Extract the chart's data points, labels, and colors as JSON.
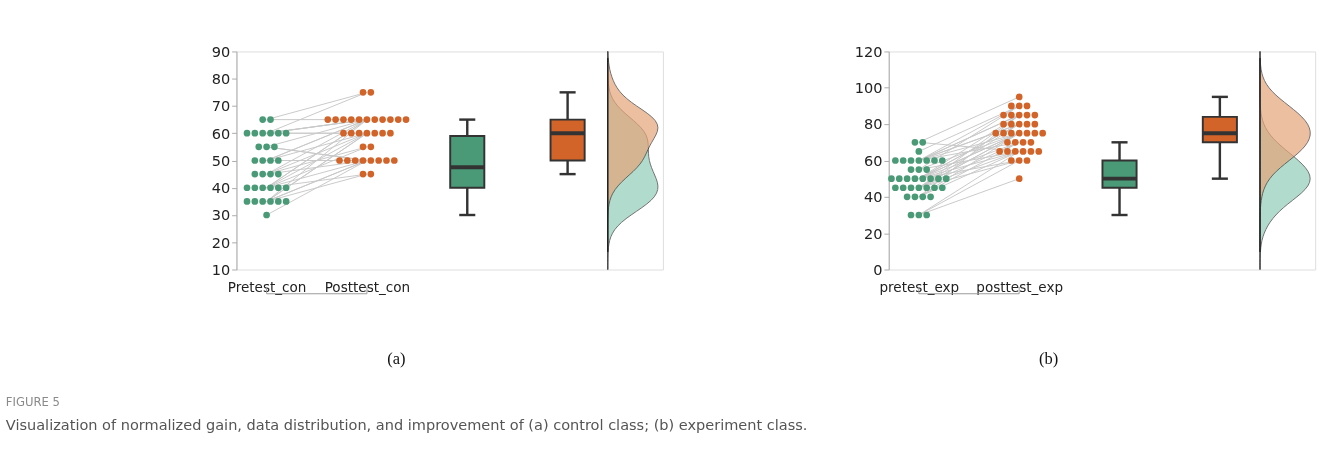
{
  "chart_data": [
    {
      "type": "box",
      "categories": [
        "Pretest_con",
        "Posttest_con",
        null,
        null
      ],
      "ylim": [
        10,
        90
      ],
      "yticks": [
        10,
        20,
        30,
        40,
        50,
        60,
        70,
        80,
        90
      ],
      "grid": false,
      "marker": "circle",
      "annotations": [
        "(a)"
      ],
      "series": [
        {
          "type": "line",
          "color": "#c8c8c8",
          "marker": "none",
          "x": [
            "Pretest_con",
            "Posttest_con"
          ],
          "values": [
            65,
            75
          ]
        },
        {
          "type": "line",
          "color": "#c8c8c8",
          "marker": "none",
          "x": [
            "Pretest_con",
            "Posttest_con"
          ],
          "values": [
            65,
            65
          ]
        },
        {
          "type": "line",
          "color": "#c8c8c8",
          "marker": "none",
          "x": [
            "Pretest_con",
            "Posttest_con"
          ],
          "values": [
            60,
            60
          ]
        },
        {
          "type": "line",
          "color": "#c8c8c8",
          "marker": "none",
          "x": [
            "Pretest_con",
            "Posttest_con"
          ],
          "values": [
            60,
            65
          ]
        },
        {
          "type": "line",
          "color": "#c8c8c8",
          "marker": "none",
          "x": [
            "Pretest_con",
            "Posttest_con"
          ],
          "values": [
            60,
            65
          ]
        },
        {
          "type": "line",
          "color": "#c8c8c8",
          "marker": "none",
          "x": [
            "Pretest_con",
            "Posttest_con"
          ],
          "values": [
            60,
            75
          ]
        },
        {
          "type": "line",
          "color": "#c8c8c8",
          "marker": "none",
          "x": [
            "Pretest_con",
            "Posttest_con"
          ],
          "values": [
            60,
            60
          ]
        },
        {
          "type": "line",
          "color": "#c8c8c8",
          "marker": "none",
          "x": [
            "Pretest_con",
            "Posttest_con"
          ],
          "values": [
            60,
            65
          ]
        },
        {
          "type": "line",
          "color": "#c8c8c8",
          "marker": "none",
          "x": [
            "Pretest_con",
            "Posttest_con"
          ],
          "values": [
            55,
            50
          ]
        },
        {
          "type": "line",
          "color": "#c8c8c8",
          "marker": "none",
          "x": [
            "Pretest_con",
            "Posttest_con"
          ],
          "values": [
            55,
            65
          ]
        },
        {
          "type": "line",
          "color": "#c8c8c8",
          "marker": "none",
          "x": [
            "Pretest_con",
            "Posttest_con"
          ],
          "values": [
            55,
            50
          ]
        },
        {
          "type": "line",
          "color": "#c8c8c8",
          "marker": "none",
          "x": [
            "Pretest_con",
            "Posttest_con"
          ],
          "values": [
            50,
            65
          ]
        },
        {
          "type": "line",
          "color": "#c8c8c8",
          "marker": "none",
          "x": [
            "Pretest_con",
            "Posttest_con"
          ],
          "values": [
            50,
            60
          ]
        },
        {
          "type": "line",
          "color": "#c8c8c8",
          "marker": "none",
          "x": [
            "Pretest_con",
            "Posttest_con"
          ],
          "values": [
            50,
            65
          ]
        },
        {
          "type": "line",
          "color": "#c8c8c8",
          "marker": "none",
          "x": [
            "Pretest_con",
            "Posttest_con"
          ],
          "values": [
            50,
            50
          ]
        },
        {
          "type": "line",
          "color": "#c8c8c8",
          "marker": "none",
          "x": [
            "Pretest_con",
            "Posttest_con"
          ],
          "values": [
            45,
            60
          ]
        },
        {
          "type": "line",
          "color": "#c8c8c8",
          "marker": "none",
          "x": [
            "Pretest_con",
            "Posttest_con"
          ],
          "values": [
            45,
            55
          ]
        },
        {
          "type": "line",
          "color": "#c8c8c8",
          "marker": "none",
          "x": [
            "Pretest_con",
            "Posttest_con"
          ],
          "values": [
            45,
            65
          ]
        },
        {
          "type": "line",
          "color": "#c8c8c8",
          "marker": "none",
          "x": [
            "Pretest_con",
            "Posttest_con"
          ],
          "values": [
            45,
            50
          ]
        },
        {
          "type": "line",
          "color": "#c8c8c8",
          "marker": "none",
          "x": [
            "Pretest_con",
            "Posttest_con"
          ],
          "values": [
            40,
            60
          ]
        },
        {
          "type": "line",
          "color": "#c8c8c8",
          "marker": "none",
          "x": [
            "Pretest_con",
            "Posttest_con"
          ],
          "values": [
            40,
            65
          ]
        },
        {
          "type": "line",
          "color": "#c8c8c8",
          "marker": "none",
          "x": [
            "Pretest_con",
            "Posttest_con"
          ],
          "values": [
            40,
            50
          ]
        },
        {
          "type": "line",
          "color": "#c8c8c8",
          "marker": "none",
          "x": [
            "Pretest_con",
            "Posttest_con"
          ],
          "values": [
            40,
            55
          ]
        },
        {
          "type": "line",
          "color": "#c8c8c8",
          "marker": "none",
          "x": [
            "Pretest_con",
            "Posttest_con"
          ],
          "values": [
            40,
            65
          ]
        },
        {
          "type": "line",
          "color": "#c8c8c8",
          "marker": "none",
          "x": [
            "Pretest_con",
            "Posttest_con"
          ],
          "values": [
            40,
            45
          ]
        },
        {
          "type": "line",
          "color": "#c8c8c8",
          "marker": "none",
          "x": [
            "Pretest_con",
            "Posttest_con"
          ],
          "values": [
            35,
            50
          ]
        },
        {
          "type": "line",
          "color": "#c8c8c8",
          "marker": "none",
          "x": [
            "Pretest_con",
            "Posttest_con"
          ],
          "values": [
            35,
            60
          ]
        },
        {
          "type": "line",
          "color": "#c8c8c8",
          "marker": "none",
          "x": [
            "Pretest_con",
            "Posttest_con"
          ],
          "values": [
            35,
            50
          ]
        },
        {
          "type": "line",
          "color": "#c8c8c8",
          "marker": "none",
          "x": [
            "Pretest_con",
            "Posttest_con"
          ],
          "values": [
            35,
            45
          ]
        },
        {
          "type": "line",
          "color": "#c8c8c8",
          "marker": "none",
          "x": [
            "Pretest_con",
            "Posttest_con"
          ],
          "values": [
            35,
            65
          ]
        },
        {
          "type": "line",
          "color": "#c8c8c8",
          "marker": "none",
          "x": [
            "Pretest_con",
            "Posttest_con"
          ],
          "values": [
            35,
            60
          ]
        },
        {
          "type": "line",
          "color": "#c8c8c8",
          "marker": "none",
          "x": [
            "Pretest_con",
            "Posttest_con"
          ],
          "values": [
            30,
            50
          ]
        },
        {
          "type": "scatter",
          "color": "#4a9a78",
          "x": [
            "Pretest_con",
            "Pretest_con",
            "Pretest_con",
            "Pretest_con",
            "Pretest_con",
            "Pretest_con",
            "Pretest_con",
            "Pretest_con",
            "Pretest_con",
            "Pretest_con",
            "Pretest_con",
            "Pretest_con",
            "Pretest_con",
            "Pretest_con",
            "Pretest_con",
            "Pretest_con",
            "Pretest_con",
            "Pretest_con",
            "Pretest_con",
            "Pretest_con",
            "Pretest_con",
            "Pretest_con",
            "Pretest_con",
            "Pretest_con",
            "Pretest_con",
            "Pretest_con",
            "Pretest_con",
            "Pretest_con",
            "Pretest_con",
            "Pretest_con",
            "Pretest_con",
            "Pretest_con"
          ],
          "values": [
            65,
            65,
            60,
            60,
            60,
            60,
            60,
            60,
            55,
            55,
            55,
            50,
            50,
            50,
            50,
            45,
            45,
            45,
            45,
            40,
            40,
            40,
            40,
            40,
            40,
            35,
            35,
            35,
            35,
            35,
            35,
            30
          ]
        },
        {
          "type": "scatter",
          "color": "#d2642a",
          "x": [
            "Posttest_con",
            "Posttest_con",
            "Posttest_con",
            "Posttest_con",
            "Posttest_con",
            "Posttest_con",
            "Posttest_con",
            "Posttest_con",
            "Posttest_con",
            "Posttest_con",
            "Posttest_con",
            "Posttest_con",
            "Posttest_con",
            "Posttest_con",
            "Posttest_con",
            "Posttest_con",
            "Posttest_con",
            "Posttest_con",
            "Posttest_con",
            "Posttest_con",
            "Posttest_con",
            "Posttest_con",
            "Posttest_con",
            "Posttest_con",
            "Posttest_con",
            "Posttest_con",
            "Posttest_con",
            "Posttest_con",
            "Posttest_con",
            "Posttest_con",
            "Posttest_con",
            "Posttest_con"
          ],
          "values": [
            75,
            65,
            60,
            65,
            65,
            75,
            60,
            65,
            50,
            65,
            50,
            65,
            60,
            65,
            50,
            60,
            55,
            65,
            50,
            60,
            65,
            50,
            55,
            65,
            45,
            50,
            60,
            50,
            45,
            65,
            60,
            50
          ]
        },
        {
          "type": "box",
          "color": "#4a9a78",
          "boxes": [
            null,
            null,
            {
              "low": 30,
              "q1": 40,
              "median": 47.5,
              "q3": 59,
              "high": 65
            },
            null
          ]
        },
        {
          "type": "box",
          "color": "#d2642a",
          "boxes": [
            null,
            null,
            null,
            {
              "low": 45,
              "q1": 50,
              "median": 60,
              "q3": 65,
              "high": 75
            }
          ]
        }
      ]
    },
    {
      "type": "box",
      "categories": [
        "pretest_exp",
        "posttest_exp",
        null,
        null
      ],
      "ylim": [
        0,
        120
      ],
      "yticks": [
        0,
        20,
        40,
        60,
        80,
        100,
        120
      ],
      "grid": false,
      "marker": "circle",
      "annotations": [
        "(b)",
        "FIGURE 5",
        "Visualization of normalized gain, data distribution, and improvement of (a) control class; (b) experiment class."
      ],
      "series": [
        {
          "type": "line",
          "color": "#c8c8c8",
          "marker": "none",
          "x": [
            "pretest_exp",
            "posttest_exp"
          ],
          "values": [
            70,
            65
          ]
        },
        {
          "type": "line",
          "color": "#c8c8c8",
          "marker": "none",
          "x": [
            "pretest_exp",
            "posttest_exp"
          ],
          "values": [
            70,
            95
          ]
        },
        {
          "type": "line",
          "color": "#c8c8c8",
          "marker": "none",
          "x": [
            "pretest_exp",
            "posttest_exp"
          ],
          "values": [
            65,
            90
          ]
        },
        {
          "type": "line",
          "color": "#c8c8c8",
          "marker": "none",
          "x": [
            "pretest_exp",
            "posttest_exp"
          ],
          "values": [
            60,
            85
          ]
        },
        {
          "type": "line",
          "color": "#c8c8c8",
          "marker": "none",
          "x": [
            "pretest_exp",
            "posttest_exp"
          ],
          "values": [
            60,
            90
          ]
        },
        {
          "type": "line",
          "color": "#c8c8c8",
          "marker": "none",
          "x": [
            "pretest_exp",
            "posttest_exp"
          ],
          "values": [
            60,
            80
          ]
        },
        {
          "type": "line",
          "color": "#c8c8c8",
          "marker": "none",
          "x": [
            "pretest_exp",
            "posttest_exp"
          ],
          "values": [
            60,
            75
          ]
        },
        {
          "type": "line",
          "color": "#c8c8c8",
          "marker": "none",
          "x": [
            "pretest_exp",
            "posttest_exp"
          ],
          "values": [
            60,
            70
          ]
        },
        {
          "type": "line",
          "color": "#c8c8c8",
          "marker": "none",
          "x": [
            "pretest_exp",
            "posttest_exp"
          ],
          "values": [
            60,
            85
          ]
        },
        {
          "type": "line",
          "color": "#c8c8c8",
          "marker": "none",
          "x": [
            "pretest_exp",
            "posttest_exp"
          ],
          "values": [
            60,
            80
          ]
        },
        {
          "type": "line",
          "color": "#c8c8c8",
          "marker": "none",
          "x": [
            "pretest_exp",
            "posttest_exp"
          ],
          "values": [
            55,
            75
          ]
        },
        {
          "type": "line",
          "color": "#c8c8c8",
          "marker": "none",
          "x": [
            "pretest_exp",
            "posttest_exp"
          ],
          "values": [
            55,
            90
          ]
        },
        {
          "type": "line",
          "color": "#c8c8c8",
          "marker": "none",
          "x": [
            "pretest_exp",
            "posttest_exp"
          ],
          "values": [
            55,
            65
          ]
        },
        {
          "type": "line",
          "color": "#c8c8c8",
          "marker": "none",
          "x": [
            "pretest_exp",
            "posttest_exp"
          ],
          "values": [
            50,
            80
          ]
        },
        {
          "type": "line",
          "color": "#c8c8c8",
          "marker": "none",
          "x": [
            "pretest_exp",
            "posttest_exp"
          ],
          "values": [
            50,
            75
          ]
        },
        {
          "type": "line",
          "color": "#c8c8c8",
          "marker": "none",
          "x": [
            "pretest_exp",
            "posttest_exp"
          ],
          "values": [
            50,
            85
          ]
        },
        {
          "type": "line",
          "color": "#c8c8c8",
          "marker": "none",
          "x": [
            "pretest_exp",
            "posttest_exp"
          ],
          "values": [
            50,
            70
          ]
        },
        {
          "type": "line",
          "color": "#c8c8c8",
          "marker": "none",
          "x": [
            "pretest_exp",
            "posttest_exp"
          ],
          "values": [
            50,
            60
          ]
        },
        {
          "type": "line",
          "color": "#c8c8c8",
          "marker": "none",
          "x": [
            "pretest_exp",
            "posttest_exp"
          ],
          "values": [
            50,
            75
          ]
        },
        {
          "type": "line",
          "color": "#c8c8c8",
          "marker": "none",
          "x": [
            "pretest_exp",
            "posttest_exp"
          ],
          "values": [
            50,
            80
          ]
        },
        {
          "type": "line",
          "color": "#c8c8c8",
          "marker": "none",
          "x": [
            "pretest_exp",
            "posttest_exp"
          ],
          "values": [
            50,
            65
          ]
        },
        {
          "type": "line",
          "color": "#c8c8c8",
          "marker": "none",
          "x": [
            "pretest_exp",
            "posttest_exp"
          ],
          "values": [
            45,
            85
          ]
        },
        {
          "type": "line",
          "color": "#c8c8c8",
          "marker": "none",
          "x": [
            "pretest_exp",
            "posttest_exp"
          ],
          "values": [
            45,
            75
          ]
        },
        {
          "type": "line",
          "color": "#c8c8c8",
          "marker": "none",
          "x": [
            "pretest_exp",
            "posttest_exp"
          ],
          "values": [
            45,
            60
          ]
        },
        {
          "type": "line",
          "color": "#c8c8c8",
          "marker": "none",
          "x": [
            "pretest_exp",
            "posttest_exp"
          ],
          "values": [
            45,
            70
          ]
        },
        {
          "type": "line",
          "color": "#c8c8c8",
          "marker": "none",
          "x": [
            "pretest_exp",
            "posttest_exp"
          ],
          "values": [
            45,
            65
          ]
        },
        {
          "type": "line",
          "color": "#c8c8c8",
          "marker": "none",
          "x": [
            "pretest_exp",
            "posttest_exp"
          ],
          "values": [
            45,
            80
          ]
        },
        {
          "type": "line",
          "color": "#c8c8c8",
          "marker": "none",
          "x": [
            "pretest_exp",
            "posttest_exp"
          ],
          "values": [
            45,
            75
          ]
        },
        {
          "type": "line",
          "color": "#c8c8c8",
          "marker": "none",
          "x": [
            "pretest_exp",
            "posttest_exp"
          ],
          "values": [
            40,
            75
          ]
        },
        {
          "type": "line",
          "color": "#c8c8c8",
          "marker": "none",
          "x": [
            "pretest_exp",
            "posttest_exp"
          ],
          "values": [
            40,
            70
          ]
        },
        {
          "type": "line",
          "color": "#c8c8c8",
          "marker": "none",
          "x": [
            "pretest_exp",
            "posttest_exp"
          ],
          "values": [
            40,
            85
          ]
        },
        {
          "type": "line",
          "color": "#c8c8c8",
          "marker": "none",
          "x": [
            "pretest_exp",
            "posttest_exp"
          ],
          "values": [
            40,
            65
          ]
        },
        {
          "type": "line",
          "color": "#c8c8c8",
          "marker": "none",
          "x": [
            "pretest_exp",
            "posttest_exp"
          ],
          "values": [
            30,
            60
          ]
        },
        {
          "type": "line",
          "color": "#c8c8c8",
          "marker": "none",
          "x": [
            "pretest_exp",
            "posttest_exp"
          ],
          "values": [
            30,
            65
          ]
        },
        {
          "type": "line",
          "color": "#c8c8c8",
          "marker": "none",
          "x": [
            "pretest_exp",
            "posttest_exp"
          ],
          "values": [
            30,
            50
          ]
        },
        {
          "type": "scatter",
          "color": "#4a9a78",
          "x": [
            "pretest_exp",
            "pretest_exp",
            "pretest_exp",
            "pretest_exp",
            "pretest_exp",
            "pretest_exp",
            "pretest_exp",
            "pretest_exp",
            "pretest_exp",
            "pretest_exp",
            "pretest_exp",
            "pretest_exp",
            "pretest_exp",
            "pretest_exp",
            "pretest_exp",
            "pretest_exp",
            "pretest_exp",
            "pretest_exp",
            "pretest_exp",
            "pretest_exp",
            "pretest_exp",
            "pretest_exp",
            "pretest_exp",
            "pretest_exp",
            "pretest_exp",
            "pretest_exp",
            "pretest_exp",
            "pretest_exp",
            "pretest_exp",
            "pretest_exp",
            "pretest_exp",
            "pretest_exp",
            "pretest_exp",
            "pretest_exp",
            "pretest_exp"
          ],
          "values": [
            70,
            70,
            65,
            60,
            60,
            60,
            60,
            60,
            60,
            60,
            55,
            55,
            55,
            50,
            50,
            50,
            50,
            50,
            50,
            50,
            50,
            45,
            45,
            45,
            45,
            45,
            45,
            45,
            40,
            40,
            40,
            40,
            30,
            30,
            30
          ]
        },
        {
          "type": "scatter",
          "color": "#d2642a",
          "x": [
            "posttest_exp",
            "posttest_exp",
            "posttest_exp",
            "posttest_exp",
            "posttest_exp",
            "posttest_exp",
            "posttest_exp",
            "posttest_exp",
            "posttest_exp",
            "posttest_exp",
            "posttest_exp",
            "posttest_exp",
            "posttest_exp",
            "posttest_exp",
            "posttest_exp",
            "posttest_exp",
            "posttest_exp",
            "posttest_exp",
            "posttest_exp",
            "posttest_exp",
            "posttest_exp",
            "posttest_exp",
            "posttest_exp",
            "posttest_exp",
            "posttest_exp",
            "posttest_exp",
            "posttest_exp",
            "posttest_exp",
            "posttest_exp",
            "posttest_exp",
            "posttest_exp",
            "posttest_exp",
            "posttest_exp",
            "posttest_exp",
            "posttest_exp"
          ],
          "values": [
            65,
            95,
            90,
            85,
            90,
            80,
            75,
            70,
            85,
            80,
            75,
            90,
            65,
            80,
            75,
            85,
            70,
            60,
            75,
            80,
            65,
            85,
            75,
            60,
            70,
            65,
            80,
            75,
            75,
            70,
            85,
            65,
            60,
            65,
            50
          ]
        },
        {
          "type": "box",
          "color": "#4a9a78",
          "boxes": [
            null,
            null,
            {
              "low": 30,
              "q1": 45,
              "median": 50,
              "q3": 60,
              "high": 70
            },
            null
          ]
        },
        {
          "type": "box",
          "color": "#d2642a",
          "boxes": [
            null,
            null,
            null,
            {
              "low": 50,
              "q1": 70,
              "median": 75,
              "q3": 84,
              "high": 95
            }
          ]
        }
      ]
    }
  ]
}
